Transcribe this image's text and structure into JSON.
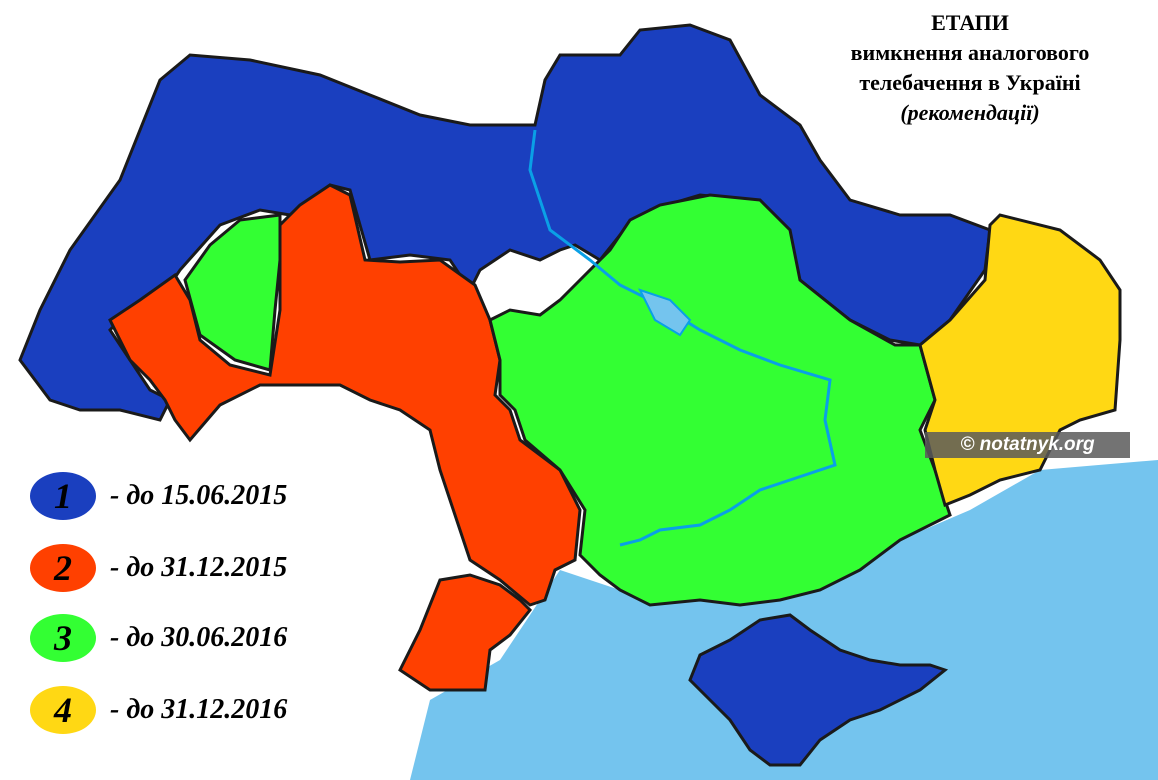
{
  "title": {
    "line1": "ЕТАПИ",
    "line2": "вимкнення аналогового",
    "line3": "телебачення в Україні",
    "line4": "(рекомендації)"
  },
  "colors": {
    "stage1": "#1a3fbf",
    "stage2": "#ff4000",
    "stage3": "#33ff33",
    "stage4": "#ffd814",
    "water": "#74c4ee",
    "border": "#1a1a1a"
  },
  "legend": [
    {
      "number": "1",
      "text": "- до 15.06.2015",
      "color": "#1a3fbf"
    },
    {
      "number": "2",
      "text": "- до 31.12.2015",
      "color": "#ff4000"
    },
    {
      "number": "3",
      "text": "- до 30.06.2016",
      "color": "#33ff33"
    },
    {
      "number": "4",
      "text": "- до 31.12.2016",
      "color": "#ffd814"
    }
  ],
  "watermark": "© notatnyk.org"
}
